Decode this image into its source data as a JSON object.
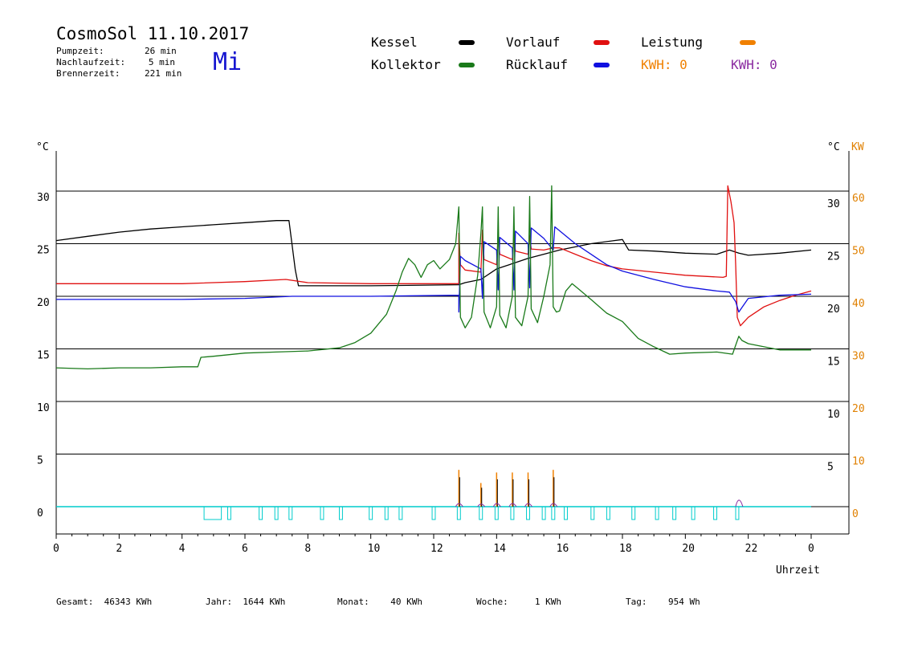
{
  "header": {
    "title": "CosmoSol 11.10.2017",
    "pumpzeit_label": "Pumpzeit:",
    "pumpzeit_value": "26 min",
    "nachlaufzeit_label": "Nachlaufzeit:",
    "nachlaufzeit_value": "5 min",
    "brennerzeit_label": "Brennerzeit:",
    "brennerzeit_value": "221 min",
    "weekday": "Mi"
  },
  "legend": {
    "kessel": "Kessel",
    "kollektor": "Kollektor",
    "vorlauf": "Vorlauf",
    "ruecklauf": "Rücklauf",
    "leistung": "Leistung",
    "kwh_orange": "KWH: 0",
    "kwh_purple": "KWH: 0"
  },
  "colors": {
    "kessel": "#000000",
    "kollektor": "#1a7a1a",
    "vorlauf": "#e01010",
    "ruecklauf": "#1010e0",
    "leistung": "#f08000",
    "kwh2": "#8a2aa0",
    "pump": "#00cccc"
  },
  "footer": {
    "gesamt_label": "Gesamt:",
    "gesamt_value": "46343 KWh",
    "jahr_label": "Jahr:",
    "jahr_value": "1644 KWh",
    "monat_label": "Monat:",
    "monat_value": "40 KWh",
    "woche_label": "Woche:",
    "woche_value": "1 KWh",
    "tag_label": "Tag:",
    "tag_value": "954 Wh"
  },
  "chart_data": {
    "type": "line",
    "xlabel": "Uhrzeit",
    "ylabel_left": "°C",
    "ylabel_right": "°C",
    "ylabel_right2": "KW",
    "xlim": [
      0,
      24
    ],
    "ylim": [
      -2.5,
      35
    ],
    "grid": true,
    "x_ticks": [
      "0",
      "2",
      "4",
      "6",
      "8",
      "10",
      "12",
      "14",
      "16",
      "18",
      "20",
      "22",
      "0"
    ],
    "y_ticks_left": [
      "0",
      "5",
      "10",
      "15",
      "20",
      "25",
      "30"
    ],
    "y_ticks_right_c": [
      "5",
      "10",
      "15",
      "20",
      "25",
      "30"
    ],
    "y_ticks_right_kw": [
      "0",
      "10",
      "20",
      "30",
      "40",
      "50",
      "60"
    ],
    "series": [
      {
        "name": "Kessel",
        "key": "kessel",
        "points": [
          [
            0,
            25.3
          ],
          [
            1,
            25.7
          ],
          [
            2,
            26.1
          ],
          [
            3,
            26.4
          ],
          [
            4,
            26.6
          ],
          [
            5,
            26.8
          ],
          [
            6,
            27
          ],
          [
            7,
            27.2
          ],
          [
            7.4,
            27.2
          ],
          [
            7.6,
            22.5
          ],
          [
            7.7,
            21.0
          ],
          [
            8,
            21.0
          ],
          [
            10,
            21.0
          ],
          [
            12.8,
            21.1
          ],
          [
            13,
            21.3
          ],
          [
            13.5,
            21.6
          ],
          [
            14,
            22.6
          ],
          [
            14.5,
            23.1
          ],
          [
            15,
            23.6
          ],
          [
            15.5,
            24.0
          ],
          [
            16,
            24.4
          ],
          [
            17,
            25.0
          ],
          [
            18,
            25.4
          ],
          [
            18.2,
            24.4
          ],
          [
            19,
            24.3
          ],
          [
            20,
            24.1
          ],
          [
            21,
            24.0
          ],
          [
            21.4,
            24.4
          ],
          [
            21.7,
            24.1
          ],
          [
            22,
            23.9
          ],
          [
            23,
            24.1
          ],
          [
            24,
            24.4
          ]
        ]
      },
      {
        "name": "Vorlauf",
        "key": "vorlauf",
        "points": [
          [
            0,
            21.2
          ],
          [
            2,
            21.2
          ],
          [
            4,
            21.2
          ],
          [
            6,
            21.4
          ],
          [
            7.3,
            21.6
          ],
          [
            8,
            21.3
          ],
          [
            10,
            21.2
          ],
          [
            12.8,
            21.2
          ],
          [
            12.8,
            26.0
          ],
          [
            12.85,
            23.0
          ],
          [
            13,
            22.5
          ],
          [
            13.5,
            22.3
          ],
          [
            13.55,
            26.3
          ],
          [
            13.6,
            23.5
          ],
          [
            14,
            23.0
          ],
          [
            14.05,
            25.8
          ],
          [
            14.1,
            24.0
          ],
          [
            14.5,
            23.5
          ],
          [
            14.55,
            25.5
          ],
          [
            14.6,
            24.3
          ],
          [
            15,
            24.0
          ],
          [
            15.05,
            25.8
          ],
          [
            15.1,
            24.5
          ],
          [
            15.5,
            24.4
          ],
          [
            15.8,
            24.6
          ],
          [
            16,
            24.6
          ],
          [
            16.5,
            24.0
          ],
          [
            17,
            23.4
          ],
          [
            17.5,
            22.9
          ],
          [
            18,
            22.6
          ],
          [
            19,
            22.3
          ],
          [
            20,
            22.0
          ],
          [
            21.2,
            21.8
          ],
          [
            21.3,
            21.9
          ],
          [
            21.35,
            30.5
          ],
          [
            21.45,
            29.0
          ],
          [
            21.55,
            27.0
          ],
          [
            21.6,
            23.0
          ],
          [
            21.65,
            18.0
          ],
          [
            21.75,
            17.2
          ],
          [
            22,
            18.0
          ],
          [
            22.5,
            19.0
          ],
          [
            23,
            19.6
          ],
          [
            23.5,
            20.1
          ],
          [
            24,
            20.5
          ]
        ]
      },
      {
        "name": "Rücklauf",
        "key": "ruecklauf",
        "points": [
          [
            0,
            19.7
          ],
          [
            2,
            19.7
          ],
          [
            4,
            19.7
          ],
          [
            6,
            19.8
          ],
          [
            7.5,
            20.0
          ],
          [
            8,
            20.0
          ],
          [
            10,
            20.0
          ],
          [
            12.8,
            20.1
          ],
          [
            12.8,
            18.5
          ],
          [
            12.85,
            23.8
          ],
          [
            13,
            23.4
          ],
          [
            13.5,
            22.6
          ],
          [
            13.55,
            19.8
          ],
          [
            13.6,
            25.2
          ],
          [
            14,
            24.4
          ],
          [
            14.05,
            20.6
          ],
          [
            14.1,
            25.6
          ],
          [
            14.5,
            24.6
          ],
          [
            14.55,
            20.6
          ],
          [
            14.6,
            26.2
          ],
          [
            15,
            25.0
          ],
          [
            15.05,
            20.8
          ],
          [
            15.1,
            26.5
          ],
          [
            15.5,
            25.5
          ],
          [
            15.8,
            24.4
          ],
          [
            15.85,
            26.6
          ],
          [
            16.5,
            25.0
          ],
          [
            17,
            24.0
          ],
          [
            17.5,
            23.0
          ],
          [
            18,
            22.4
          ],
          [
            19,
            21.6
          ],
          [
            20,
            20.9
          ],
          [
            21,
            20.5
          ],
          [
            21.4,
            20.4
          ],
          [
            21.6,
            19.5
          ],
          [
            21.7,
            18.5
          ],
          [
            22,
            19.8
          ],
          [
            23,
            20.1
          ],
          [
            24,
            20.2
          ]
        ]
      },
      {
        "name": "Kollektor",
        "key": "kollektor",
        "points": [
          [
            0,
            13.2
          ],
          [
            1,
            13.1
          ],
          [
            2,
            13.2
          ],
          [
            3,
            13.2
          ],
          [
            4,
            13.3
          ],
          [
            4.5,
            13.3
          ],
          [
            4.6,
            14.2
          ],
          [
            5,
            14.3
          ],
          [
            6,
            14.6
          ],
          [
            7,
            14.7
          ],
          [
            8,
            14.8
          ],
          [
            9,
            15.1
          ],
          [
            9.5,
            15.6
          ],
          [
            10,
            16.5
          ],
          [
            10.5,
            18.3
          ],
          [
            10.8,
            20.5
          ],
          [
            11,
            22.3
          ],
          [
            11.2,
            23.6
          ],
          [
            11.4,
            23.0
          ],
          [
            11.6,
            21.8
          ],
          [
            11.8,
            23.0
          ],
          [
            12,
            23.4
          ],
          [
            12.2,
            22.6
          ],
          [
            12.5,
            23.5
          ],
          [
            12.7,
            25.0
          ],
          [
            12.8,
            28.5
          ],
          [
            12.85,
            18.0
          ],
          [
            13,
            17.0
          ],
          [
            13.2,
            18.0
          ],
          [
            13.4,
            22.0
          ],
          [
            13.5,
            26.0
          ],
          [
            13.55,
            28.5
          ],
          [
            13.6,
            18.5
          ],
          [
            13.8,
            17.0
          ],
          [
            14,
            19.0
          ],
          [
            14.05,
            28.5
          ],
          [
            14.1,
            18.2
          ],
          [
            14.3,
            17.0
          ],
          [
            14.5,
            20.0
          ],
          [
            14.55,
            28.5
          ],
          [
            14.6,
            18.0
          ],
          [
            14.8,
            17.2
          ],
          [
            15,
            20.0
          ],
          [
            15.05,
            29.5
          ],
          [
            15.1,
            18.8
          ],
          [
            15.3,
            17.5
          ],
          [
            15.5,
            20.0
          ],
          [
            15.7,
            23.0
          ],
          [
            15.75,
            30.5
          ],
          [
            15.8,
            19.0
          ],
          [
            15.9,
            18.5
          ],
          [
            16,
            18.6
          ],
          [
            16.2,
            20.5
          ],
          [
            16.4,
            21.2
          ],
          [
            16.6,
            20.7
          ],
          [
            17,
            19.7
          ],
          [
            17.5,
            18.4
          ],
          [
            18,
            17.6
          ],
          [
            18.5,
            16.0
          ],
          [
            19,
            15.2
          ],
          [
            19.5,
            14.5
          ],
          [
            20,
            14.6
          ],
          [
            21,
            14.7
          ],
          [
            21.5,
            14.5
          ],
          [
            21.7,
            16.2
          ],
          [
            21.8,
            15.8
          ],
          [
            22,
            15.5
          ],
          [
            22.5,
            15.2
          ],
          [
            23,
            14.9
          ],
          [
            24,
            14.9
          ]
        ]
      }
    ],
    "leistung_kw_spikes": [
      [
        12.8,
        7
      ],
      [
        13.5,
        4.5
      ],
      [
        14.0,
        6.5
      ],
      [
        14.5,
        6.5
      ],
      [
        15.0,
        6.5
      ],
      [
        15.8,
        7.0
      ]
    ],
    "kwh2_kw_spikes": [
      [
        12.8,
        1.2
      ],
      [
        13.5,
        1.0
      ],
      [
        14.0,
        1.2
      ],
      [
        14.5,
        1.2
      ],
      [
        15.0,
        1.2
      ],
      [
        15.8,
        1.2
      ],
      [
        21.7,
        2.5
      ]
    ],
    "pump_intervals": [
      [
        4.7,
        5.25
      ],
      [
        5.45,
        5.55
      ],
      [
        6.45,
        6.55
      ],
      [
        6.95,
        7.05
      ],
      [
        7.4,
        7.5
      ],
      [
        8.4,
        8.5
      ],
      [
        9.0,
        9.1
      ],
      [
        9.95,
        10.05
      ],
      [
        10.45,
        10.55
      ],
      [
        10.9,
        11.0
      ],
      [
        11.95,
        12.05
      ],
      [
        12.75,
        12.85
      ],
      [
        13.45,
        13.55
      ],
      [
        13.95,
        14.05
      ],
      [
        14.45,
        14.55
      ],
      [
        14.95,
        15.05
      ],
      [
        15.45,
        15.55
      ],
      [
        15.75,
        15.85
      ],
      [
        16.15,
        16.25
      ],
      [
        17.0,
        17.1
      ],
      [
        17.5,
        17.6
      ],
      [
        18.3,
        18.4
      ],
      [
        19.05,
        19.15
      ],
      [
        19.6,
        19.7
      ],
      [
        20.2,
        20.3
      ],
      [
        20.9,
        21.0
      ],
      [
        21.6,
        21.7
      ]
    ]
  }
}
